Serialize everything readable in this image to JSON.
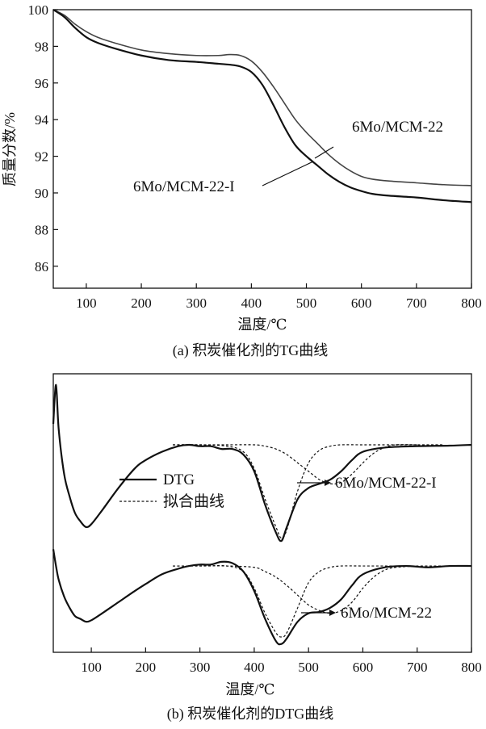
{
  "chart_data": [
    {
      "type": "line",
      "xlabel": "温度/℃",
      "ylabel": "质量分数/%",
      "caption": "(a) 积炭催化剂的TG曲线",
      "xlim": [
        40,
        800
      ],
      "ylim": [
        84.8,
        100
      ],
      "xticks": [
        100,
        200,
        300,
        400,
        500,
        600,
        700,
        800
      ],
      "yticks": [
        86,
        88,
        90,
        92,
        94,
        96,
        98,
        100
      ],
      "grid": false,
      "series": [
        {
          "name": "6Mo/MCM-22",
          "x": [
            40,
            60,
            80,
            100,
            120,
            150,
            200,
            250,
            300,
            340,
            360,
            380,
            400,
            420,
            440,
            460,
            480,
            500,
            520,
            540,
            560,
            580,
            600,
            620,
            650,
            700,
            750,
            800
          ],
          "y": [
            100,
            99.7,
            99.2,
            98.8,
            98.5,
            98.2,
            97.8,
            97.6,
            97.5,
            97.5,
            97.55,
            97.5,
            97.2,
            96.6,
            95.8,
            94.9,
            94.0,
            93.3,
            92.7,
            92.1,
            91.6,
            91.2,
            90.9,
            90.75,
            90.65,
            90.55,
            90.45,
            90.4
          ]
        },
        {
          "name": "6Mo/MCM-22-I",
          "x": [
            40,
            60,
            80,
            100,
            120,
            150,
            200,
            250,
            300,
            340,
            360,
            380,
            400,
            420,
            440,
            460,
            480,
            500,
            520,
            540,
            560,
            580,
            600,
            620,
            650,
            700,
            750,
            800
          ],
          "y": [
            100,
            99.6,
            99.0,
            98.5,
            98.2,
            97.9,
            97.5,
            97.25,
            97.15,
            97.05,
            97.0,
            96.9,
            96.6,
            95.9,
            94.8,
            93.6,
            92.6,
            92.0,
            91.5,
            91.0,
            90.6,
            90.3,
            90.1,
            89.95,
            89.85,
            89.75,
            89.6,
            89.5
          ]
        }
      ],
      "annotations": [
        "6Mo/MCM-22",
        "6Mo/MCM-22-I"
      ]
    },
    {
      "type": "line",
      "xlabel": "温度/℃",
      "caption": "(b) 积炭催化剂的DTG曲线",
      "xlim": [
        30,
        800
      ],
      "xticks": [
        100,
        200,
        300,
        400,
        500,
        600,
        700,
        800
      ],
      "ylim": [
        0,
        1
      ],
      "legend": {
        "position": "center-left",
        "entries": [
          "DTG",
          "拟合曲线"
        ]
      },
      "annotations": [
        "6Mo/MCM-22-I",
        "6Mo/MCM-22"
      ],
      "series": [
        {
          "name": "DTG",
          "sample": "6Mo/MCM-22-I",
          "x": [
            30,
            35,
            40,
            50,
            60,
            70,
            80,
            90,
            100,
            120,
            150,
            180,
            200,
            230,
            260,
            280,
            300,
            320,
            340,
            360,
            380,
            400,
            420,
            440,
            450,
            460,
            480,
            500,
            520,
            540,
            560,
            580,
            600,
            640,
            700,
            760,
            800
          ],
          "y": [
            0.82,
            0.96,
            0.8,
            0.64,
            0.56,
            0.5,
            0.47,
            0.45,
            0.46,
            0.51,
            0.59,
            0.66,
            0.69,
            0.72,
            0.74,
            0.745,
            0.74,
            0.74,
            0.73,
            0.73,
            0.71,
            0.65,
            0.53,
            0.43,
            0.4,
            0.45,
            0.55,
            0.59,
            0.605,
            0.62,
            0.65,
            0.69,
            0.72,
            0.735,
            0.74,
            0.742,
            0.745
          ]
        },
        {
          "name": "拟合曲线",
          "sample": "6Mo/MCM-22-I",
          "x": [
            250,
            300,
            350,
            380,
            400,
            420,
            440,
            450,
            460,
            480,
            500,
            520,
            540,
            560,
            600,
            650,
            700,
            750
          ],
          "y": [
            0.745,
            0.745,
            0.74,
            0.72,
            0.66,
            0.55,
            0.45,
            0.41,
            0.44,
            0.58,
            0.68,
            0.725,
            0.74,
            0.745,
            0.745,
            0.745,
            0.745,
            0.745
          ]
        },
        {
          "name": "拟合曲线",
          "sample": "6Mo/MCM-22-I",
          "x": [
            250,
            300,
            350,
            400,
            420,
            440,
            460,
            480,
            500,
            520,
            540,
            560,
            580,
            600,
            620,
            640,
            660,
            700
          ],
          "y": [
            0.745,
            0.745,
            0.745,
            0.745,
            0.74,
            0.73,
            0.71,
            0.68,
            0.65,
            0.62,
            0.605,
            0.61,
            0.64,
            0.68,
            0.715,
            0.735,
            0.745,
            0.745
          ]
        },
        {
          "name": "DTG",
          "sample": "6Mo/MCM-22",
          "x": [
            30,
            35,
            40,
            50,
            60,
            70,
            80,
            90,
            100,
            120,
            150,
            180,
            200,
            230,
            260,
            280,
            300,
            320,
            340,
            360,
            380,
            400,
            420,
            440,
            450,
            460,
            480,
            500,
            520,
            540,
            560,
            580,
            600,
            640,
            680,
            720,
            760,
            800
          ],
          "y": [
            0.37,
            0.31,
            0.26,
            0.2,
            0.16,
            0.13,
            0.12,
            0.11,
            0.115,
            0.14,
            0.18,
            0.22,
            0.245,
            0.28,
            0.3,
            0.31,
            0.315,
            0.315,
            0.325,
            0.32,
            0.29,
            0.22,
            0.12,
            0.04,
            0.03,
            0.05,
            0.11,
            0.14,
            0.145,
            0.16,
            0.19,
            0.24,
            0.28,
            0.305,
            0.31,
            0.305,
            0.31,
            0.31
          ]
        },
        {
          "name": "拟合曲线",
          "sample": "6Mo/MCM-22",
          "x": [
            250,
            300,
            350,
            380,
            400,
            420,
            440,
            450,
            460,
            480,
            500,
            520,
            540,
            560,
            600,
            650,
            700,
            750
          ],
          "y": [
            0.31,
            0.31,
            0.31,
            0.29,
            0.23,
            0.14,
            0.07,
            0.055,
            0.07,
            0.16,
            0.25,
            0.29,
            0.305,
            0.31,
            0.31,
            0.31,
            0.31,
            0.31
          ]
        },
        {
          "name": "拟合曲线",
          "sample": "6Mo/MCM-22",
          "x": [
            250,
            300,
            350,
            400,
            420,
            440,
            460,
            480,
            500,
            520,
            540,
            560,
            580,
            600,
            620,
            640,
            660,
            700
          ],
          "y": [
            0.31,
            0.31,
            0.31,
            0.305,
            0.29,
            0.27,
            0.24,
            0.205,
            0.17,
            0.15,
            0.14,
            0.15,
            0.18,
            0.23,
            0.27,
            0.295,
            0.305,
            0.31
          ]
        }
      ]
    }
  ]
}
